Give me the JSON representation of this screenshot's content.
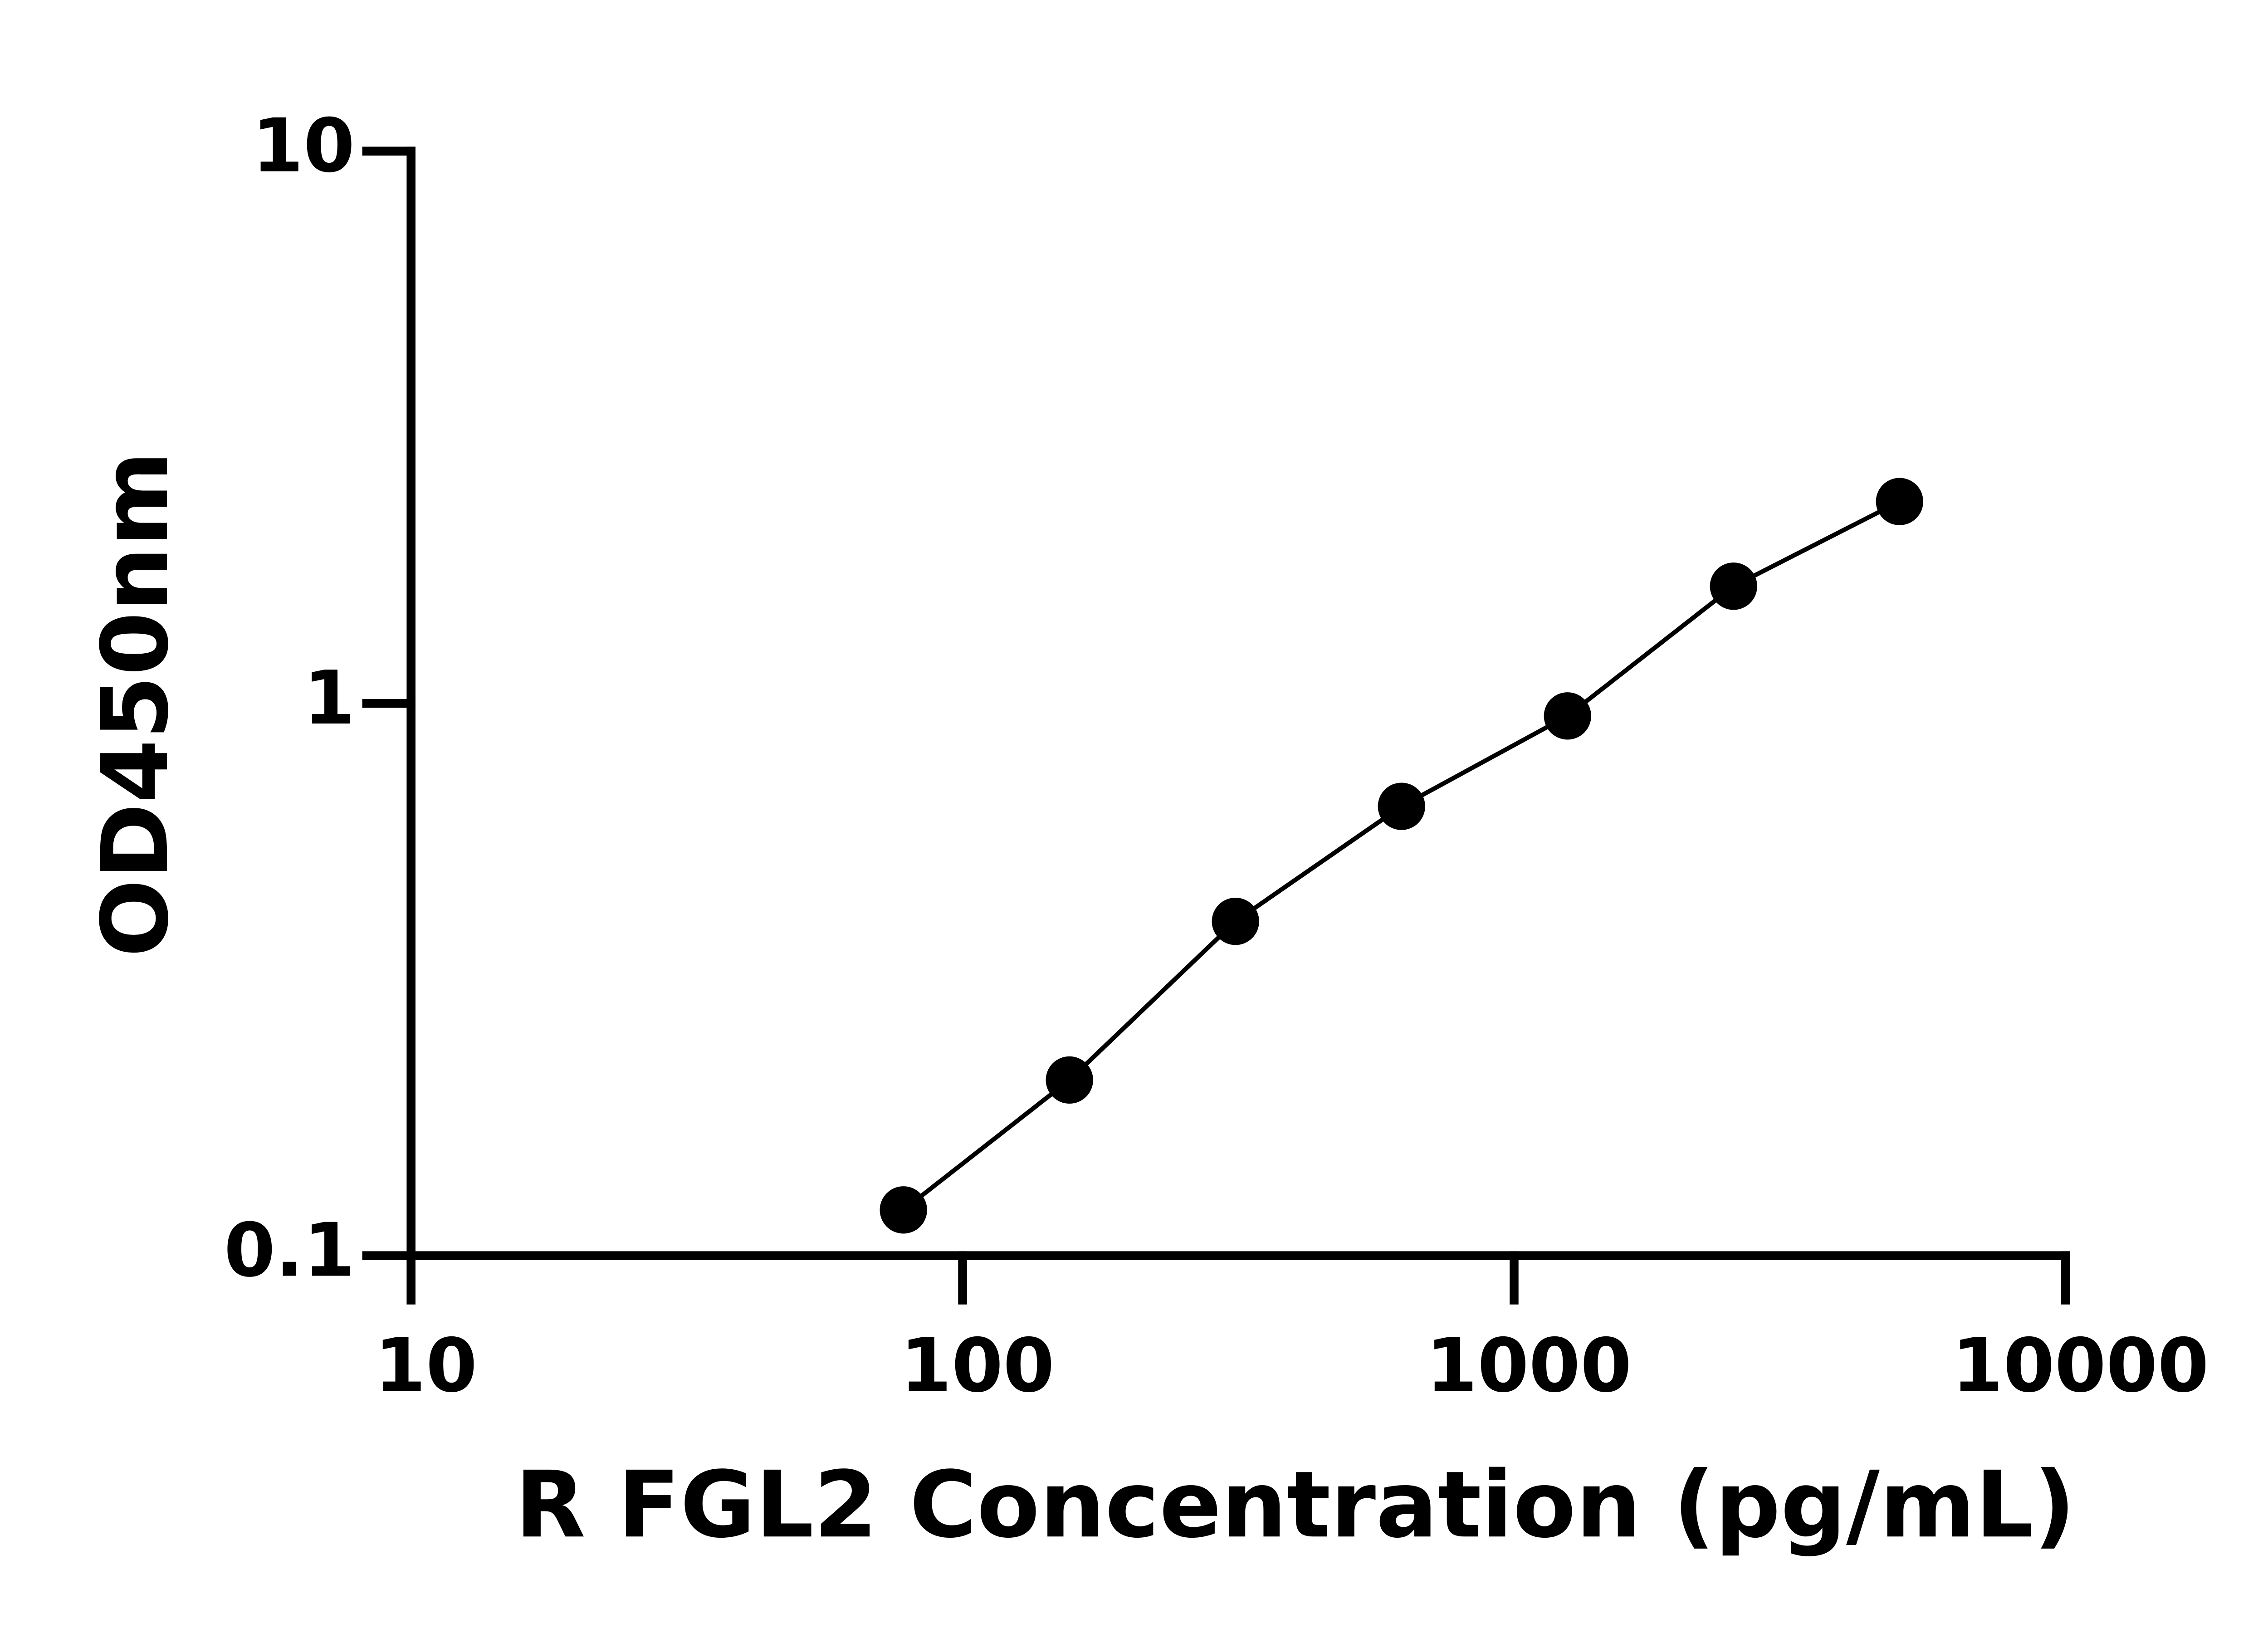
{
  "chart_data": {
    "type": "scatter",
    "x_label": "R FGL2 Concentration (pg/mL)",
    "y_label": "OD450nm",
    "x_log": true,
    "y_log": true,
    "xlim": [
      10,
      10000
    ],
    "xticks": [
      10,
      100,
      1000,
      10000
    ],
    "ylim": [
      0.1,
      10
    ],
    "yticks": [
      0.1,
      1,
      10
    ],
    "series": [
      {
        "color": "#000000",
        "x": [
          78.125,
          156.25,
          312.5,
          625,
          1250,
          2500,
          5000
        ],
        "values": [
          0.121,
          0.208,
          0.403,
          0.651,
          0.949,
          1.63,
          2.32
        ]
      }
    ]
  }
}
